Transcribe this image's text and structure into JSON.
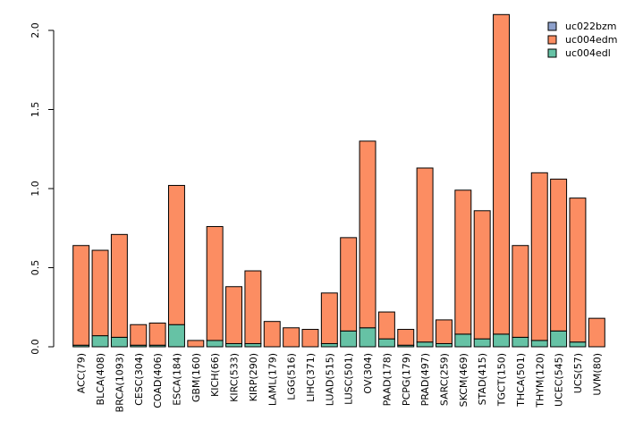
{
  "chart_data": {
    "type": "bar",
    "stacked": true,
    "title": "",
    "xlabel": "",
    "ylabel": "",
    "ylim": [
      0,
      2.1
    ],
    "yticks": [
      "0.0",
      "0.5",
      "1.0",
      "1.5",
      "2.0"
    ],
    "ytick_values": [
      0,
      0.5,
      1.0,
      1.5,
      2.0
    ],
    "grid": false,
    "legend_position": "top-right",
    "categories": [
      "ACC(79)",
      "BLCA(408)",
      "BRCA(1093)",
      "CESC(304)",
      "COAD(406)",
      "ESCA(184)",
      "GBM(160)",
      "KICH(66)",
      "KIRC(533)",
      "KIRP(290)",
      "LAML(179)",
      "LGG(516)",
      "LIHC(371)",
      "LUAD(515)",
      "LUSC(501)",
      "OV(304)",
      "PAAD(178)",
      "PCPG(179)",
      "PRAD(497)",
      "SARC(259)",
      "SKCM(469)",
      "STAD(415)",
      "TGCT(150)",
      "THCA(501)",
      "THYM(120)",
      "UCEC(545)",
      "UCS(57)",
      "UVM(80)"
    ],
    "series": [
      {
        "name": "uc004edl",
        "color": "#66c2a5",
        "values": [
          0.01,
          0.07,
          0.06,
          0.01,
          0.01,
          0.14,
          0.0,
          0.04,
          0.02,
          0.02,
          0.0,
          0.0,
          0.0,
          0.02,
          0.1,
          0.12,
          0.05,
          0.01,
          0.03,
          0.02,
          0.08,
          0.05,
          0.08,
          0.06,
          0.04,
          0.1,
          0.03,
          0.0
        ]
      },
      {
        "name": "uc004edm",
        "color": "#fc8d62",
        "values": [
          0.63,
          0.54,
          0.65,
          0.13,
          0.14,
          0.88,
          0.04,
          0.72,
          0.36,
          0.46,
          0.16,
          0.12,
          0.11,
          0.32,
          0.59,
          1.18,
          0.17,
          0.1,
          1.1,
          0.15,
          0.91,
          0.81,
          2.02,
          0.58,
          1.06,
          0.96,
          0.91,
          0.18
        ]
      },
      {
        "name": "uc022bzm",
        "color": "#8da0cb",
        "values": [
          0,
          0,
          0,
          0,
          0,
          0,
          0,
          0,
          0,
          0,
          0,
          0,
          0,
          0,
          0,
          0,
          0,
          0,
          0,
          0,
          0,
          0,
          0,
          0,
          0,
          0,
          0,
          0
        ]
      }
    ],
    "legend": [
      {
        "name": "uc022bzm",
        "color": "#8da0cb"
      },
      {
        "name": "uc004edm",
        "color": "#fc8d62"
      },
      {
        "name": "uc004edl",
        "color": "#66c2a5"
      }
    ]
  }
}
